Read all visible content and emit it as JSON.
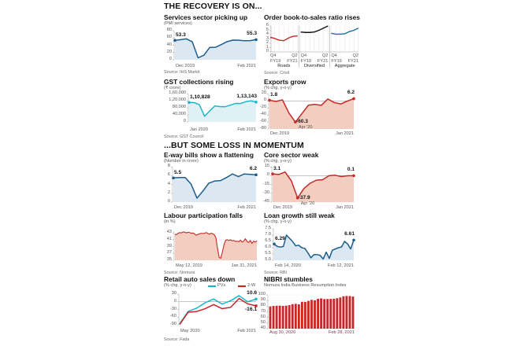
{
  "headings": {
    "top": "THE RECOVERY IS ON...",
    "middle": "...BUT SOME LOSS IN MOMENTUM"
  },
  "chart_data": [
    {
      "id": "services",
      "type": "area",
      "title": "Services sector picking up",
      "subtitle": "(PMI services)",
      "source": "Source: IHS Markit",
      "ylim": [
        0,
        80
      ],
      "yticks": [
        "0",
        "20",
        "40",
        "60",
        "80"
      ],
      "ytick_values": [
        0,
        20,
        40,
        60,
        80
      ],
      "xlabels": [
        "Dec 2019",
        "Feb 2021"
      ],
      "color": "#1b5e8c",
      "fill": "#dbe8f2",
      "series": [
        {
          "values": [
            53.3,
            55.5,
            57.5,
            49.3,
            5.4,
            12.6,
            33.7,
            34.2,
            41.8,
            49.8,
            54.1,
            53.7,
            52.3,
            52.8,
            55.3
          ]
        }
      ],
      "annotations": [
        {
          "text": "53.3",
          "at": "first"
        },
        {
          "text": "55.3",
          "at": "last"
        }
      ]
    },
    {
      "id": "gst",
      "type": "area",
      "title": "GST collections rising",
      "subtitle": "(₹ crore)",
      "source": "Source: GST Council",
      "ylim": [
        0,
        160000
      ],
      "yticks": [
        "0",
        "40,000",
        "80,000",
        "1,20,000",
        "1,60,000"
      ],
      "ytick_values": [
        0,
        40000,
        80000,
        120000,
        160000
      ],
      "xlabels": [
        "Jan 2020",
        "Feb 2021"
      ],
      "color": "#1fb5c9",
      "fill": "#dff1f5",
      "series": [
        {
          "values": [
            110828,
            110000,
            97597,
            32172,
            62151,
            90917,
            87422,
            86449,
            95480,
            105155,
            104963,
            115174,
            119875,
            113143
          ]
        }
      ],
      "annotations": [
        {
          "text": "1,10,828",
          "at": "first"
        },
        {
          "text": "1,13,143",
          "at": "last"
        }
      ]
    },
    {
      "id": "orderbook",
      "type": "line",
      "title": "Order book-to-sales ratio rises",
      "subtitle": "",
      "source": "Source: Crisil",
      "ylim": [
        0,
        6
      ],
      "yticks": [
        "0",
        "1",
        "2",
        "3",
        "4",
        "5",
        "6"
      ],
      "ytick_values": [
        0,
        1,
        2,
        3,
        4,
        5,
        6
      ],
      "panels": [
        {
          "name": "Roads",
          "xlabels": [
            "Q4\nFY19",
            "Q2\nFY21"
          ],
          "color": "#c62828",
          "values": [
            3.4,
            3.1,
            2.7,
            2.6,
            3.2,
            3.6,
            3.7
          ]
        },
        {
          "name": "Diversified",
          "xlabels": [
            "Q4\nFY19",
            "Q2\nFY21"
          ],
          "color": "#111111",
          "values": [
            4.6,
            4.5,
            4.5,
            4.6,
            5.0,
            5.5,
            6.0
          ]
        },
        {
          "name": "Aggregate",
          "xlabels": [
            "Q4\nFY19",
            "Q2\nFY21"
          ],
          "color": "#1b6ea0",
          "values": [
            4.3,
            4.1,
            4.1,
            4.2,
            4.7,
            5.0,
            5.5
          ]
        }
      ]
    },
    {
      "id": "exports",
      "type": "area",
      "title": "Exports grow",
      "subtitle": "(% chg, y-o-y)",
      "source": "",
      "ylim": [
        -80,
        20
      ],
      "yticks": [
        "-80",
        "-60",
        "-40",
        "-20",
        "0",
        "20"
      ],
      "ytick_values": [
        -80,
        -60,
        -40,
        -20,
        0,
        20
      ],
      "xlabels": [
        "Dec 2019",
        "Jan 2021"
      ],
      "color": "#c62828",
      "fill": "#f3cdbf",
      "baseline": -80,
      "zero_line": true,
      "series": [
        {
          "values": [
            1.8,
            -1.7,
            2.9,
            -34.6,
            -60.3,
            -36.5,
            -12.4,
            -10.2,
            -12.7,
            5.3,
            -5.1,
            -8.7,
            -0.8,
            6.2
          ]
        }
      ],
      "annotations": [
        {
          "text": "1.8",
          "at": "first"
        },
        {
          "text": "6.2",
          "at": "last"
        },
        {
          "text": "-60.3",
          "at": "min",
          "sub": "Apr '20"
        }
      ]
    },
    {
      "id": "eway",
      "type": "area",
      "title": "E-way bills show a flattening",
      "subtitle": "(Number in crore)",
      "source": "",
      "ylim": [
        0,
        8
      ],
      "yticks": [
        "0",
        "2",
        "4",
        "6",
        "8"
      ],
      "ytick_values": [
        0,
        2,
        4,
        6,
        8
      ],
      "xlabels": [
        "Dec 2019",
        "Feb 2021"
      ],
      "color": "#1b5e8c",
      "fill": "#dbe8f2",
      "series": [
        {
          "values": [
            5.5,
            5.6,
            5.6,
            4.1,
            0.9,
            2.5,
            4.3,
            4.8,
            4.9,
            5.6,
            6.4,
            5.8,
            6.4,
            6.3,
            6.2
          ]
        }
      ],
      "annotations": [
        {
          "text": "5.5",
          "at": "first"
        },
        {
          "text": "6.2",
          "at": "last"
        }
      ]
    },
    {
      "id": "core",
      "type": "area",
      "title": "Core sector weak",
      "subtitle": "(% chg, y-o-y)",
      "source": "",
      "ylim": [
        -45,
        15
      ],
      "yticks": [
        "-45",
        "-30",
        "-15",
        "0",
        "15"
      ],
      "ytick_values": [
        -45,
        -30,
        -15,
        0,
        15
      ],
      "xlabels": [
        "Dec 2019",
        "Jan 2021"
      ],
      "color": "#c62828",
      "fill": "#f3cdbf",
      "baseline": -45,
      "zero_line": true,
      "series": [
        {
          "values": [
            3.1,
            2.2,
            6.4,
            -8.6,
            -37.9,
            -22.0,
            -12.9,
            -7.6,
            -6.9,
            -0.1,
            0.9,
            -1.4,
            0.0,
            0.1
          ]
        }
      ],
      "annotations": [
        {
          "text": "3.1",
          "at": "first"
        },
        {
          "text": "0.1",
          "at": "last"
        },
        {
          "text": "-37.9",
          "at": "min",
          "sub": "Apr '20"
        }
      ]
    },
    {
      "id": "labour",
      "type": "area",
      "title": "Labour participation falls",
      "subtitle": "(in %)",
      "source": "Source: Nomura",
      "ylim": [
        35,
        43.5
      ],
      "yticks": [
        "35",
        "37",
        "39",
        "41",
        "43"
      ],
      "ytick_values": [
        35,
        37,
        39,
        41,
        43
      ],
      "xlabels": [
        "May 12, 2019",
        "Jan 31, 2021"
      ],
      "color": "#c62828",
      "fill": "#f3cdbf",
      "series": [
        {
          "values": [
            42.6,
            42.5,
            42.9,
            43.1,
            43.0,
            43.3,
            43.2,
            43.0,
            43.2,
            43.1,
            42.9,
            43.0,
            42.7,
            42.3,
            42.6,
            42.7,
            42.9,
            42.8,
            42.9,
            43.1,
            42.9,
            42.6,
            42.9,
            42.8,
            42.5,
            41.6,
            38.5,
            35.8,
            35.6,
            37.5,
            39.6,
            40.9,
            41.0,
            40.8,
            41.0,
            40.7,
            40.8,
            40.5,
            40.6,
            40.4,
            40.9,
            40.3,
            40.6,
            41.3,
            40.5,
            40.2,
            40.8,
            39.9,
            40.6,
            40.3,
            40.7
          ]
        }
      ]
    },
    {
      "id": "loan",
      "type": "area",
      "title": "Loan growth still weak",
      "subtitle": "(% chg, y-o-y)",
      "source": "Source: RBI",
      "ylim": [
        5.0,
        7.5
      ],
      "yticks": [
        "5.0",
        "5.5",
        "6.0",
        "6.5",
        "7.0",
        "7.5"
      ],
      "ytick_values": [
        5.0,
        5.5,
        6.0,
        6.5,
        7.0,
        7.5
      ],
      "xlabels": [
        "Feb 14, 2020",
        "Feb 12, 2021"
      ],
      "color": "#1b5e8c",
      "fill": "#dbe8f2",
      "baseline": 5.0,
      "series": [
        {
          "values": [
            6.29,
            6.1,
            6.05,
            6.1,
            7.0,
            6.75,
            6.5,
            6.15,
            6.2,
            6.0,
            5.95,
            5.6,
            5.2,
            5.45,
            5.45,
            5.4,
            5.1,
            5.65,
            5.15,
            5.8,
            5.9,
            6.0,
            6.05,
            6.5,
            6.3,
            5.9,
            6.61
          ]
        }
      ],
      "annotations": [
        {
          "text": "6.29",
          "at": "first"
        },
        {
          "text": "6.61",
          "at": "last"
        }
      ]
    },
    {
      "id": "retail",
      "type": "line",
      "title": "Retail auto sales down",
      "subtitle": "(% chg, y-o-y)",
      "source": "Source: Fada",
      "ylim": [
        -90,
        30
      ],
      "yticks": [
        "-90",
        "-60",
        "-30",
        "0",
        "30"
      ],
      "ytick_values": [
        -90,
        -60,
        -30,
        0,
        30
      ],
      "xlabels": [
        "May 2020",
        "Feb 2021"
      ],
      "zero_line": true,
      "legend": "top",
      "series": [
        {
          "name": "PVs",
          "color": "#1fb5c9",
          "values": [
            -86,
            -38,
            -25,
            -4,
            11,
            -9,
            4,
            24,
            0,
            10.6
          ]
        },
        {
          "name": "2-W",
          "color": "#c62828",
          "values": [
            -89,
            -41,
            -38,
            -27,
            -11,
            -27,
            -22,
            13,
            -8,
            -16.1
          ]
        }
      ],
      "annotations": [
        {
          "text": "10.6",
          "series": 0,
          "at": "last"
        },
        {
          "text": "-16.1",
          "series": 1,
          "at": "last"
        }
      ]
    },
    {
      "id": "nibri",
      "type": "bar",
      "title": "NIBRI stumbles",
      "subtitle": "Nomura India Business Resumption Index",
      "source": "",
      "ylim": [
        40,
        100
      ],
      "yticks": [
        "40",
        "50",
        "60",
        "70",
        "80",
        "90",
        "100"
      ],
      "ytick_values": [
        40,
        50,
        60,
        70,
        80,
        90,
        100
      ],
      "xlabels": [
        "Aug 30, 2020",
        "Feb 28, 2021"
      ],
      "color": "#c62828",
      "series": [
        {
          "values": [
            79.5,
            80.4,
            80.8,
            80.9,
            80.5,
            80.9,
            81.8,
            83.5,
            84.1,
            83.2,
            87.7,
            87.6,
            89.3,
            91.2,
            90.3,
            93.1,
            93.8,
            92.6,
            92.7,
            92.9,
            93.3,
            94.1,
            95.4,
            97.4,
            98.1,
            98.0,
            97.1
          ]
        }
      ]
    }
  ]
}
